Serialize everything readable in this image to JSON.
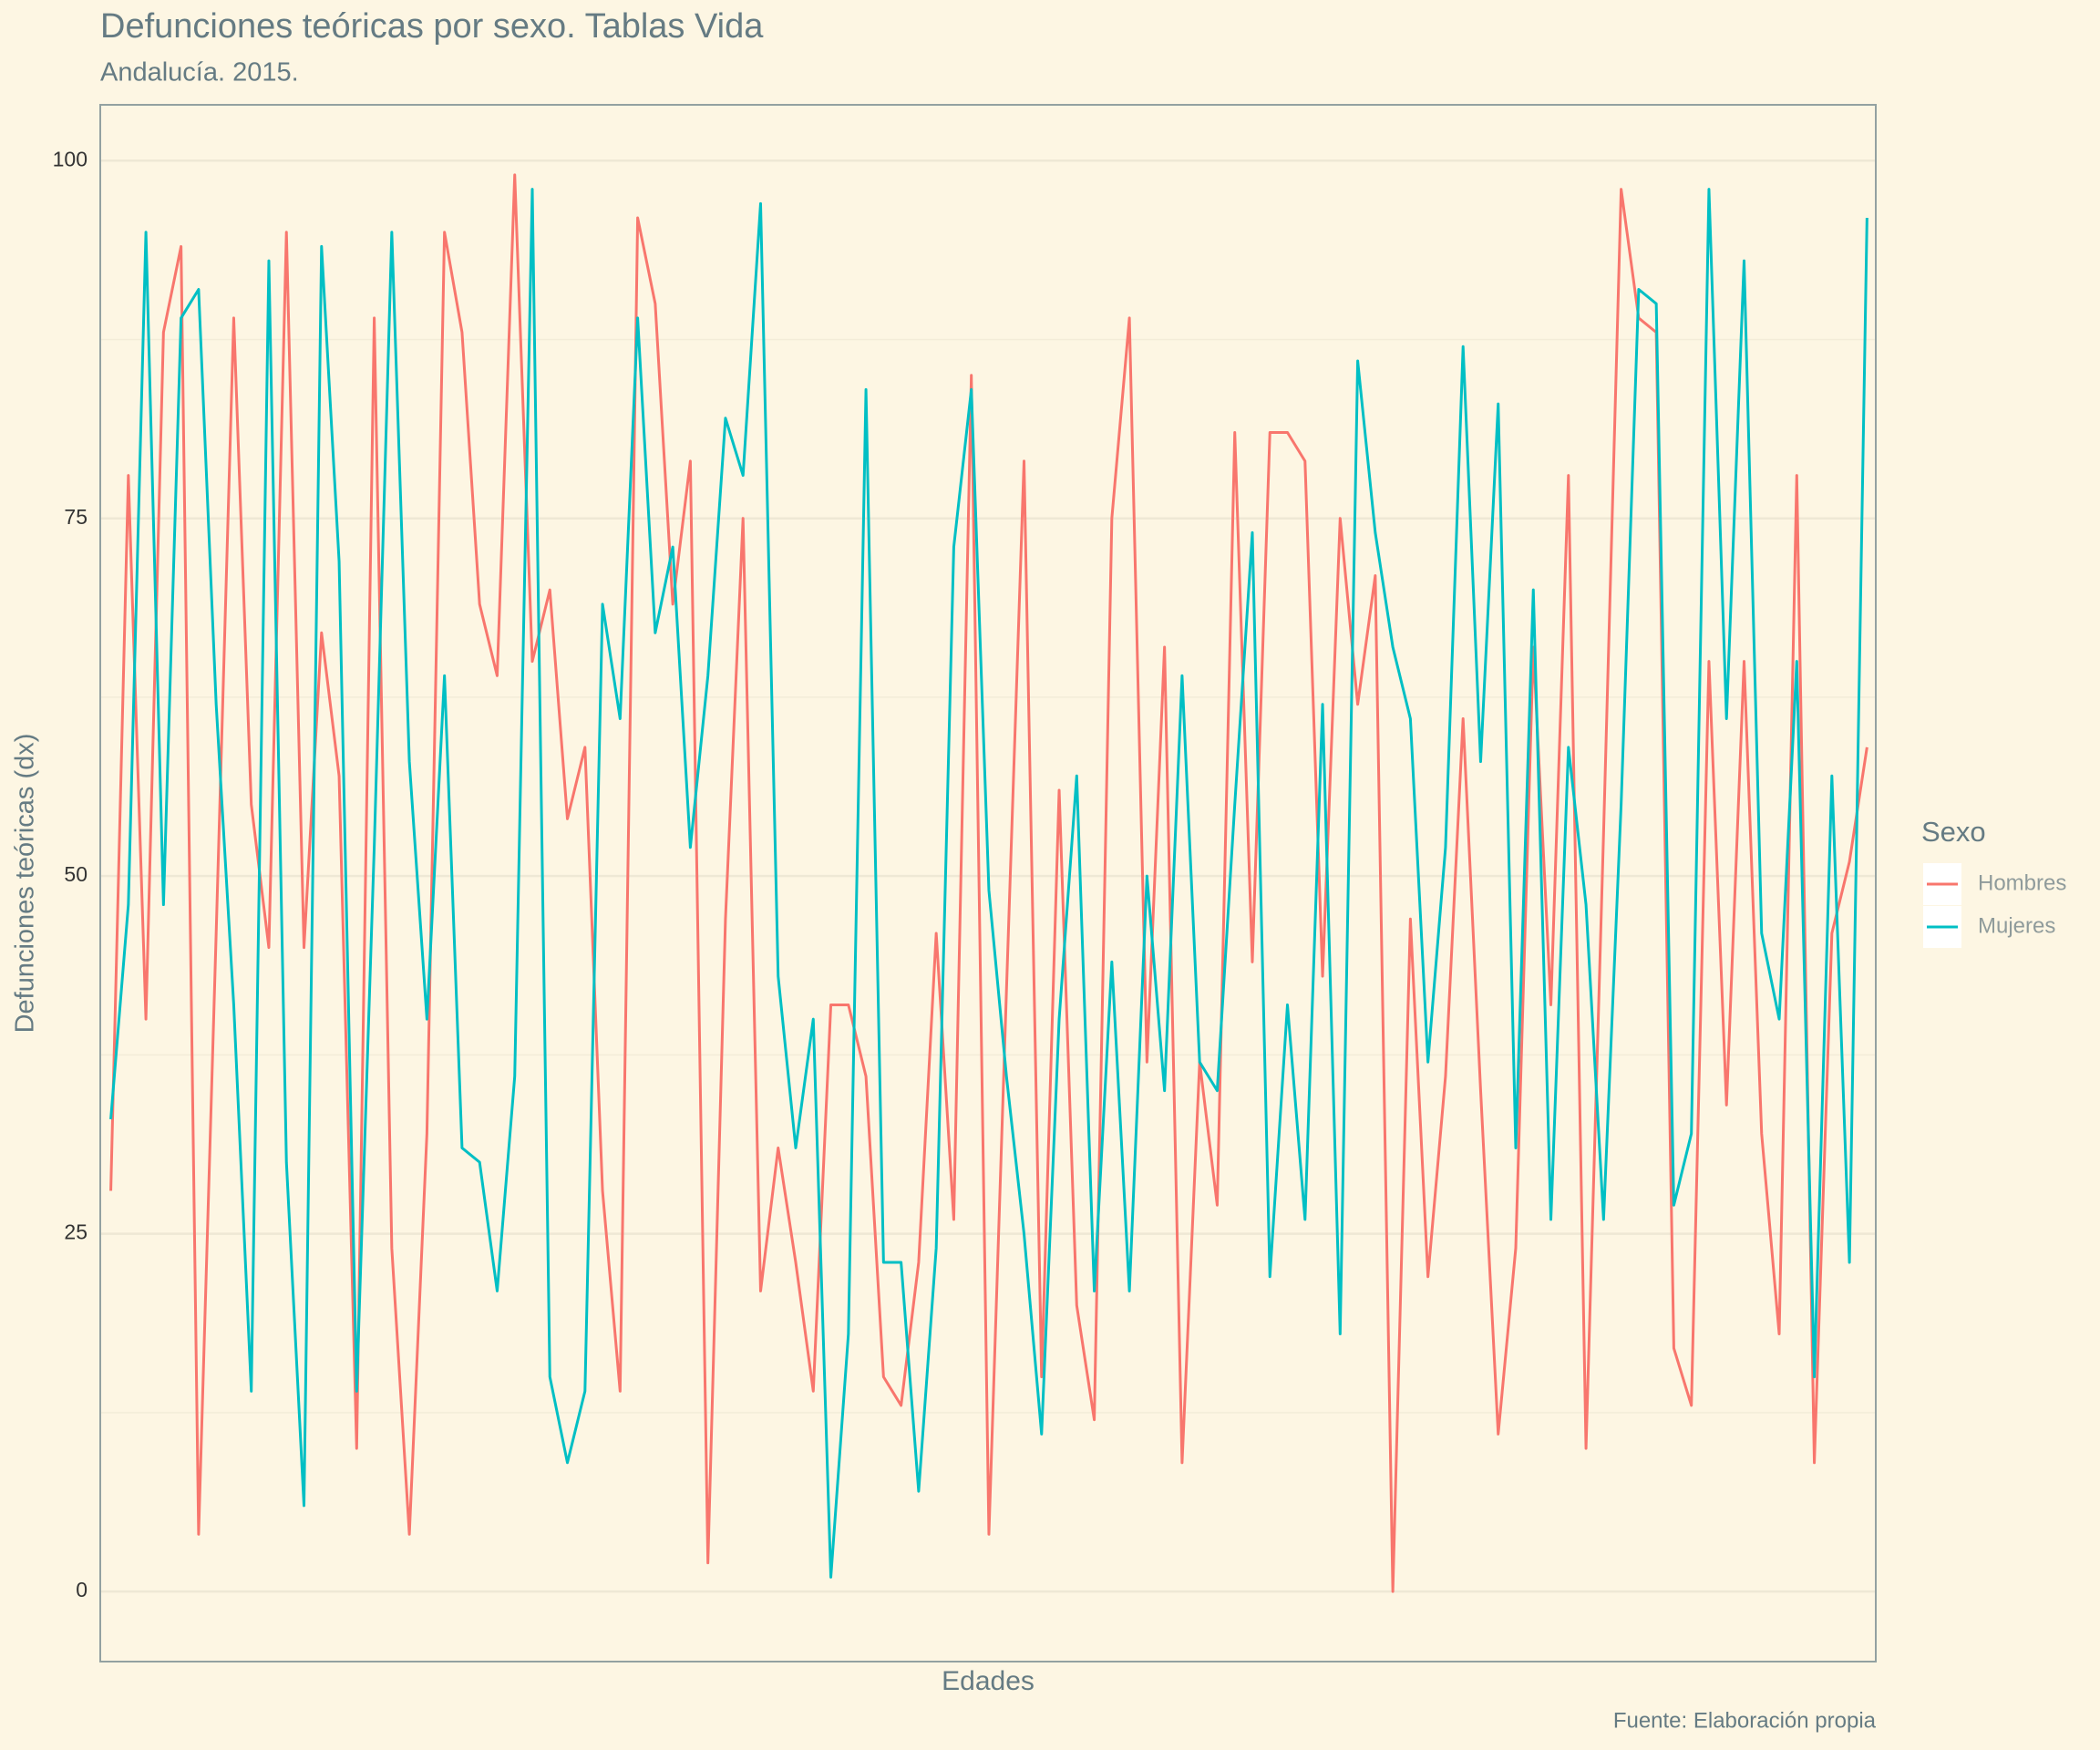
{
  "chart_data": {
    "type": "line",
    "title": "Defunciones teóricas por sexo. Tablas Vida",
    "subtitle": "Andalucía. 2015.",
    "x_label": "Edades",
    "y_label": "Defunciones teóricas (dx)",
    "caption": "Fuente: Elaboración propia",
    "legend_title": "Sexo",
    "legend_position": "right",
    "grid": true,
    "x": [
      0,
      1,
      2,
      3,
      4,
      5,
      6,
      7,
      8,
      9,
      10,
      11,
      12,
      13,
      14,
      15,
      16,
      17,
      18,
      19,
      20,
      21,
      22,
      23,
      24,
      25,
      26,
      27,
      28,
      29,
      30,
      31,
      32,
      33,
      34,
      35,
      36,
      37,
      38,
      39,
      40,
      41,
      42,
      43,
      44,
      45,
      46,
      47,
      48,
      49,
      50,
      51,
      52,
      53,
      54,
      55,
      56,
      57,
      58,
      59,
      60,
      61,
      62,
      63,
      64,
      65,
      66,
      67,
      68,
      69,
      70,
      71,
      72,
      73,
      74,
      75,
      76,
      77,
      78,
      79,
      80,
      81,
      82,
      83,
      84,
      85,
      86,
      87,
      88,
      89,
      90,
      91,
      92,
      93,
      94,
      95,
      96,
      97,
      98,
      99,
      100
    ],
    "xlim": [
      -0.6,
      100.5
    ],
    "ylim": [
      -4.9,
      103.9
    ],
    "yticks": [
      0,
      25,
      50,
      75,
      100
    ],
    "minor_yticks": [
      12.5,
      37.5,
      62.5,
      87.5
    ],
    "series": [
      {
        "name": "Hombres",
        "color": "#f8766d",
        "values": [
          28,
          78,
          40,
          88,
          94,
          4,
          46,
          89,
          55,
          45,
          95,
          45,
          67,
          57,
          10,
          89,
          24,
          4,
          32,
          95,
          88,
          69,
          64,
          99,
          65,
          70,
          54,
          59,
          28,
          14,
          96,
          90,
          69,
          79,
          2,
          47,
          75,
          21,
          31,
          23,
          14,
          41,
          41,
          36,
          15,
          13,
          23,
          46,
          26,
          85,
          4,
          42,
          79,
          15,
          56,
          20,
          12,
          75,
          89,
          37,
          66,
          9,
          37,
          27,
          81,
          44,
          81,
          81,
          79,
          43,
          75,
          62,
          71,
          0,
          47,
          22,
          36,
          61,
          35,
          11,
          24,
          66,
          41,
          78,
          10,
          53,
          98,
          89,
          88,
          17,
          13,
          65,
          34,
          65,
          32,
          18,
          78,
          9,
          46,
          51,
          59
        ]
      },
      {
        "name": "Mujeres",
        "color": "#00bfc4",
        "values": [
          33,
          48,
          95,
          48,
          89,
          91,
          62,
          41,
          14,
          93,
          30,
          6,
          94,
          72,
          14,
          52,
          95,
          58,
          40,
          64,
          31,
          30,
          21,
          36,
          98,
          15,
          9,
          14,
          69,
          61,
          89,
          67,
          73,
          52,
          64,
          82,
          78,
          97,
          43,
          31,
          40,
          1,
          18,
          84,
          23,
          23,
          7,
          24,
          73,
          84,
          49,
          36,
          25,
          11,
          40,
          57,
          21,
          44,
          21,
          50,
          35,
          64,
          37,
          35,
          55,
          74,
          22,
          41,
          26,
          62,
          18,
          86,
          74,
          66,
          61,
          37,
          52,
          87,
          58,
          83,
          31,
          70,
          26,
          59,
          48,
          26,
          55,
          91,
          90,
          27,
          32,
          98,
          61,
          93,
          46,
          40,
          65,
          15,
          57,
          23,
          96
        ]
      }
    ]
  }
}
